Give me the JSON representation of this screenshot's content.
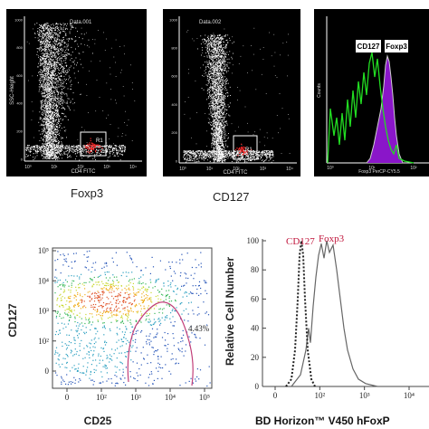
{
  "panels": {
    "a": {
      "file": "Data.001",
      "xlabel": "CD4 FITC",
      "ylabel": "SSC-Height",
      "gate": "R1",
      "caption": "Foxp3",
      "xticks": [
        "10⁰",
        "10¹",
        "10²",
        "10³",
        "10⁴"
      ],
      "yticks": [
        "0",
        "200",
        "400",
        "600",
        "800",
        "1000"
      ]
    },
    "b": {
      "file": "Data.002",
      "xlabel": "CD4 FITC",
      "gate": "R1",
      "caption": "CD127",
      "xticks": [
        "10⁰",
        "10¹",
        "10²",
        "10³",
        "10⁴"
      ],
      "yticks": [
        "0",
        "200",
        "400",
        "600",
        "800",
        "1000"
      ]
    },
    "c": {
      "xlabel": "Foxp3 PerCP-CY5.5",
      "ylabel": "Counts",
      "legend_cd127": "CD127",
      "legend_foxp3": "Foxp3",
      "xticks": [
        "10⁰",
        "10¹",
        "10²"
      ],
      "colors": {
        "cd127": "#22dd22",
        "foxp3": "#8a16c9",
        "outline": "#cfcfcf"
      }
    },
    "d": {
      "xlabel": "CD25",
      "ylabel": "CD127",
      "percent": "4.43%",
      "xticks": [
        "0",
        "10²",
        "10³",
        "10⁴",
        "10⁵"
      ],
      "yticks": [
        "0",
        "10²",
        "10³",
        "10⁴",
        "10⁵"
      ]
    },
    "e": {
      "xlabel": "BD Horizon™ V450 hFoxP",
      "ylabel": "Relative Cell Number",
      "legend_cd127": "CD127",
      "legend_foxp3": "Foxp3",
      "xticks": [
        "0",
        "10²",
        "10³",
        "10⁴"
      ],
      "yticks": [
        "0",
        "20",
        "40",
        "60",
        "80",
        "100"
      ],
      "label_color": "#c0163c"
    }
  }
}
